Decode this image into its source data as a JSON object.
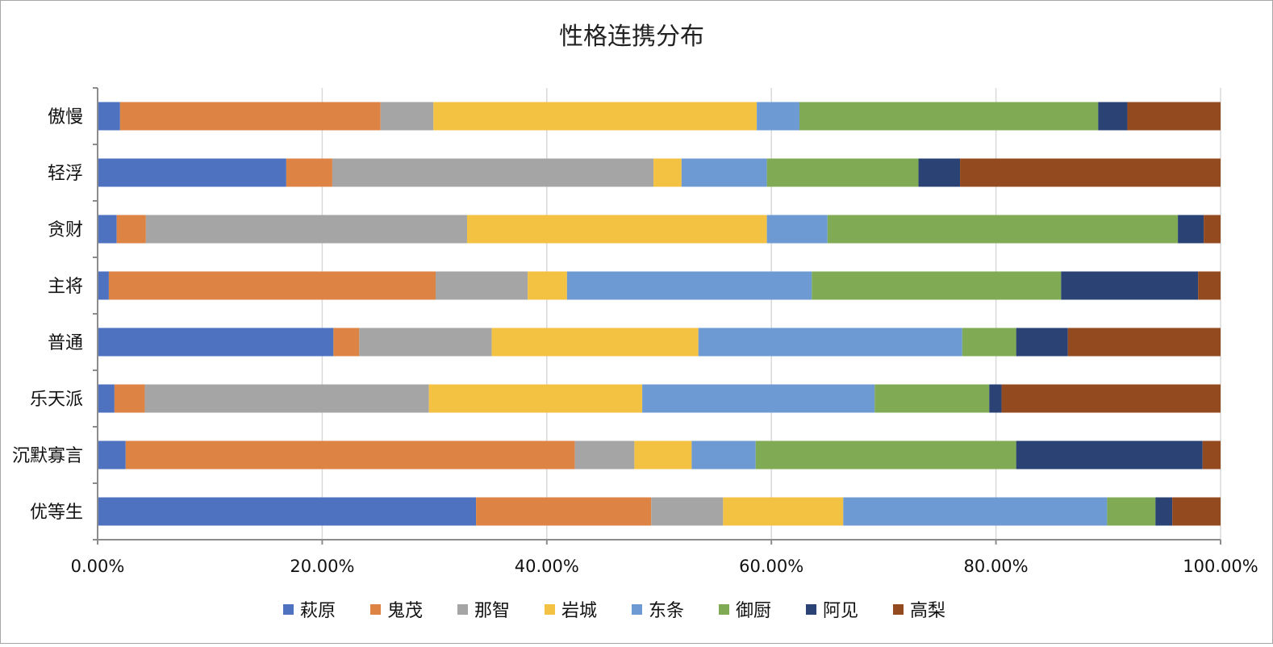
{
  "chart_data": {
    "type": "bar",
    "orientation": "horizontal",
    "stacking": "percent",
    "title": "性格连携分布",
    "xlabel": "",
    "ylabel": "",
    "xlim": [
      0,
      100
    ],
    "x_ticks": [
      "0.00%",
      "20.00%",
      "40.00%",
      "60.00%",
      "80.00%",
      "100.00%"
    ],
    "grid": "vertical",
    "legend_position": "bottom",
    "categories": [
      "傲慢",
      "轻浮",
      "贪财",
      "主将",
      "普通",
      "乐天派",
      "沉默寡言",
      "优等生"
    ],
    "series": [
      {
        "name": "萩原",
        "color": "#4f72c0",
        "values": [
          2.0,
          16.8,
          1.7,
          1.0,
          21.0,
          1.5,
          2.5,
          33.7
        ]
      },
      {
        "name": "鬼茂",
        "color": "#dd8344",
        "values": [
          23.2,
          4.1,
          2.6,
          29.1,
          2.3,
          2.7,
          40.0,
          15.6
        ]
      },
      {
        "name": "那智",
        "color": "#a5a5a5",
        "values": [
          4.7,
          28.6,
          28.6,
          8.2,
          11.8,
          25.3,
          5.3,
          6.4
        ]
      },
      {
        "name": "岩城",
        "color": "#f4c242",
        "values": [
          28.8,
          2.5,
          26.7,
          3.5,
          18.4,
          19.0,
          5.1,
          10.7
        ]
      },
      {
        "name": "东条",
        "color": "#6d9ad3",
        "values": [
          3.8,
          7.6,
          5.4,
          21.8,
          23.5,
          20.7,
          5.7,
          23.5
        ]
      },
      {
        "name": "御厨",
        "color": "#80ab54",
        "values": [
          26.6,
          13.5,
          31.2,
          22.2,
          4.8,
          10.2,
          23.2,
          4.3
        ]
      },
      {
        "name": "阿见",
        "color": "#2b4275",
        "values": [
          2.6,
          3.7,
          2.3,
          12.2,
          4.6,
          1.1,
          16.6,
          1.5
        ]
      },
      {
        "name": "高梨",
        "color": "#944a1f",
        "values": [
          8.3,
          23.2,
          1.5,
          2.0,
          13.6,
          19.5,
          1.6,
          4.3
        ]
      }
    ]
  }
}
